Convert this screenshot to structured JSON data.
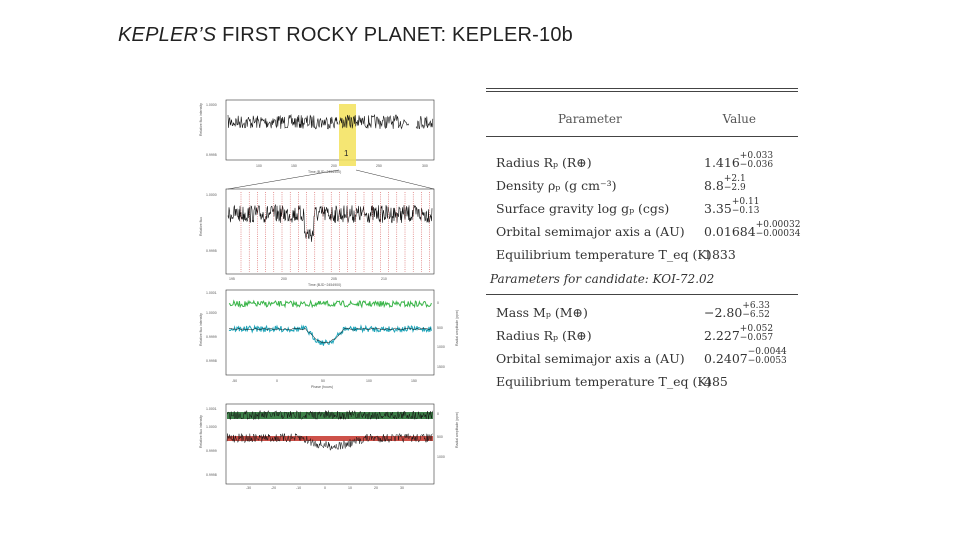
{
  "slide": {
    "title_italic": "KEPLER’S",
    "title_rest": " FIRST ROCKY PLANET: KEPLER-10b"
  },
  "figure": {
    "panel1": {
      "ylabel": "Relative flux intensity",
      "y_ticks": [
        "1.0000",
        "0.9995"
      ],
      "x_ticks": [
        "100",
        "150",
        "200",
        "250",
        "300"
      ],
      "xlabel": "Time (BJD−2454900)",
      "highlight_label": "1"
    },
    "panel2": {
      "ylabel": "Relative flux",
      "y_ticks": [
        "1.0000",
        "0.9995"
      ],
      "x_ticks": [
        "195",
        "200",
        "205",
        "210"
      ],
      "xlabel": "Time (BJD−2454900)"
    },
    "panel3": {
      "ylabel": "Relative flux intensity",
      "right_label": "Radial amplitude (ppm)",
      "y_ticks": [
        "1.0001",
        "1.0000",
        "0.9999",
        "0.9998"
      ],
      "right_ticks": [
        "0",
        "500",
        "1000",
        "1500"
      ],
      "x_ticks": [
        "-50",
        "0",
        "50",
        "100",
        "150"
      ],
      "xlabel": "Phase (hours)"
    },
    "panel4": {
      "ylabel": "Relative flux intensity",
      "right_label": "Radial amplitude (ppm)",
      "y_ticks": [
        "1.0001",
        "1.0000",
        "0.9999",
        "0.9998"
      ],
      "right_ticks": [
        "0",
        "500",
        "1000"
      ],
      "x_ticks": [
        "-30",
        "-20",
        "-10",
        "0",
        "10",
        "20",
        "30"
      ],
      "xlabel": "Phase (hours)"
    }
  },
  "table": {
    "header_parameter": "Parameter",
    "header_value": "Value",
    "rows": [
      {
        "param": "Radius Rₚ (R⊕)",
        "value": "1.416",
        "sup": "+0.033",
        "sub": "−0.036"
      },
      {
        "param": "Density ρₚ (g cm⁻³)",
        "value": "8.8",
        "sup": "+2.1",
        "sub": "−2.9"
      },
      {
        "param": "Surface gravity log gₚ (cgs)",
        "value": "3.35",
        "sup": "+0.11",
        "sub": "−0.13"
      },
      {
        "param": "Orbital semimajor axis a (AU)",
        "value": "0.01684",
        "sup": "+0.00032",
        "sub": "−0.00034"
      },
      {
        "param": "Equilibrium temperature T_eq (K)",
        "value": "1833",
        "sup": "",
        "sub": ""
      }
    ],
    "section_label": "Parameters for candidate: KOI-72.02",
    "rows2": [
      {
        "param": "Mass Mₚ (M⊕)",
        "value": "−2.80",
        "sup": "+6.33",
        "sub": "−6.52"
      },
      {
        "param": "Radius Rₚ (R⊕)",
        "value": "2.227",
        "sup": "+0.052",
        "sub": "−0.057"
      },
      {
        "param": "Orbital semimajor axis a (AU)",
        "value": "0.2407",
        "sup": "−0.0044",
        "sub": "−0.0053"
      },
      {
        "param": "Equilibrium temperature T_eq (K)",
        "value": "485",
        "sup": "",
        "sub": ""
      }
    ]
  },
  "colors": {
    "green_series": "#3bb54a",
    "cyan_series": "#1fa3b8",
    "dark_green_band": "#1d6b2a",
    "red_series": "#c0261c",
    "highlight": "#f3e25a",
    "transit_lines": "#c33"
  }
}
